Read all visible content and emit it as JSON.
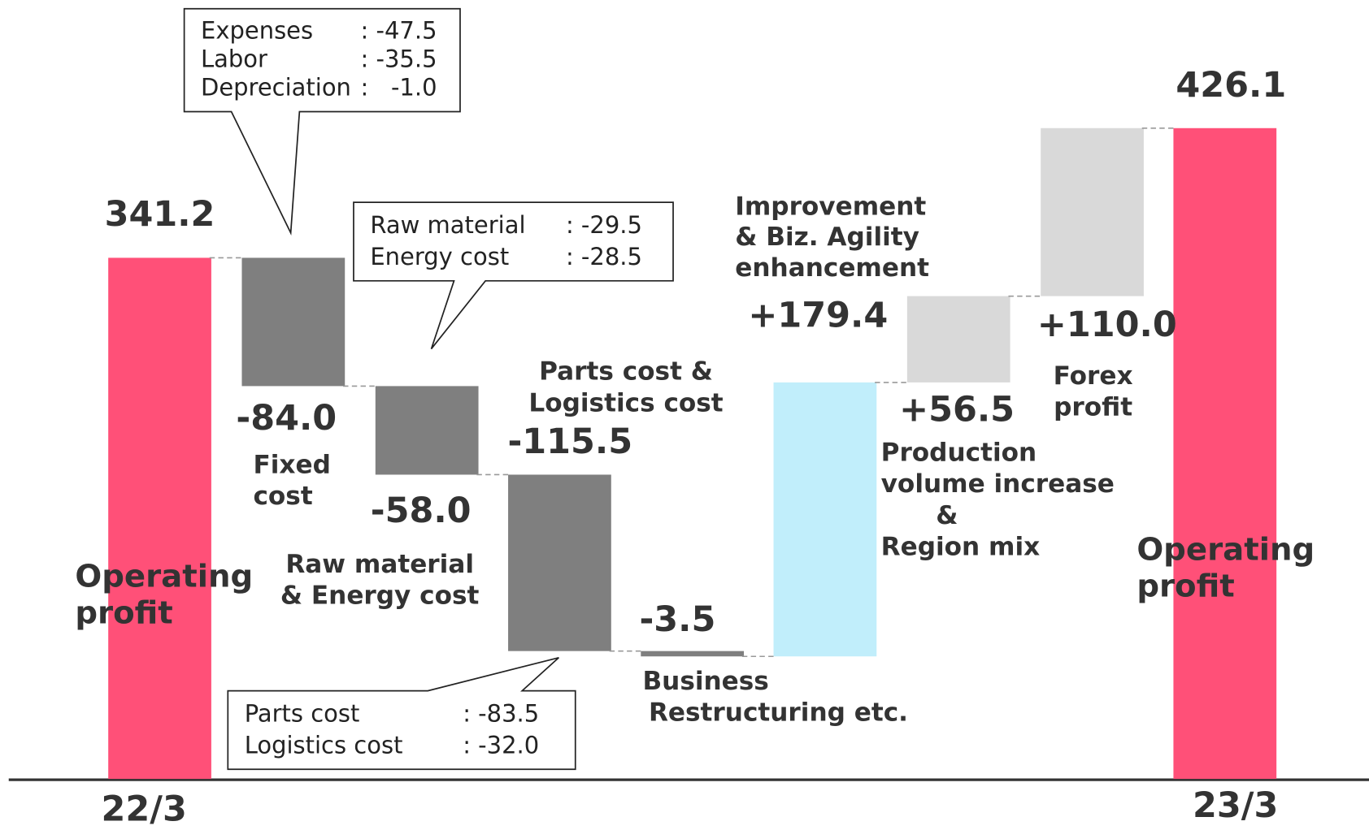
{
  "chart_data": {
    "type": "waterfall",
    "categories": [
      [
        "Operating",
        "profit"
      ],
      [
        "Fixed",
        "cost"
      ],
      [
        "Raw material",
        "& Energy cost"
      ],
      [
        "Parts cost &",
        "Logistics cost"
      ],
      [
        "Business",
        "Restructuring etc."
      ],
      [
        "Improvement",
        "& Biz. Agility",
        "enhancement"
      ],
      [
        "Production",
        "volume increase",
        "&",
        "Region mix"
      ],
      [
        "Forex",
        "profit"
      ],
      [
        "Operating",
        "profit"
      ]
    ],
    "values": [
      341.2,
      -84.0,
      -58.0,
      -115.5,
      -3.5,
      179.4,
      56.5,
      110.0,
      426.1
    ],
    "value_labels": [
      "341.2",
      "-84.0",
      "-58.0",
      "-115.5",
      "-3.5",
      "+179.4",
      "+56.5",
      "+110.0",
      "426.1"
    ],
    "measure": [
      "total",
      "relative",
      "relative",
      "relative",
      "relative",
      "relative",
      "relative",
      "relative",
      "total"
    ],
    "colors": [
      "#ff5078",
      "#7f7f7f",
      "#7f7f7f",
      "#7f7f7f",
      "#7f7f7f",
      "#c1eefb",
      "#d9d9d9",
      "#d9d9d9",
      "#ff5078"
    ],
    "x_labels": [
      "22/3",
      null,
      null,
      null,
      null,
      null,
      null,
      null,
      "23/3"
    ],
    "ylim": [
      0,
      510
    ],
    "callouts": [
      {
        "items": [
          {
            "name": "Expenses",
            "value": -47.5,
            "value_label": ": -47.5"
          },
          {
            "name": "Labor",
            "value": -35.5,
            "value_label": ": -35.5"
          },
          {
            "name": "Depreciation",
            "value": -1.0,
            "value_label": ":   -1.0"
          }
        ]
      },
      {
        "items": [
          {
            "name": "Raw material",
            "value": -29.5,
            "value_label": ": -29.5"
          },
          {
            "name": "Energy cost",
            "value": -28.5,
            "value_label": ": -28.5"
          }
        ]
      },
      {
        "items": [
          {
            "name": "Parts cost",
            "value": -83.5,
            "value_label": ": -83.5"
          },
          {
            "name": "Logistics cost",
            "value": -32.0,
            "value_label": ": -32.0"
          }
        ]
      }
    ]
  }
}
